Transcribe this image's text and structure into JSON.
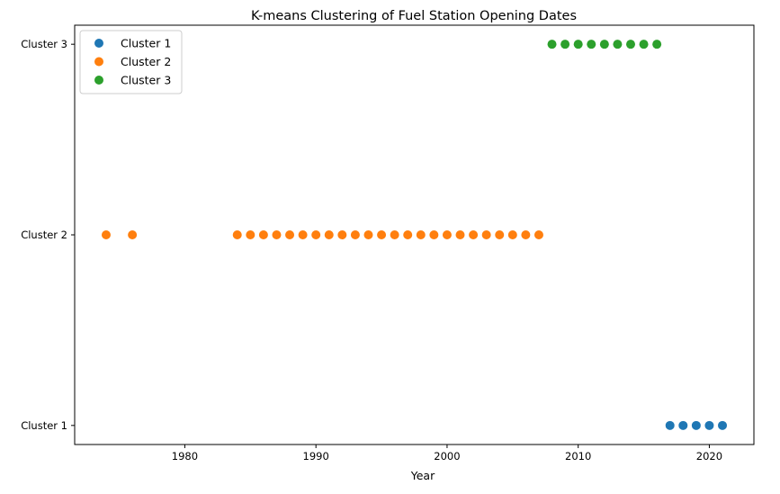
{
  "chart_data": {
    "type": "scatter",
    "title": "K-means Clustering of Fuel Station Opening Dates",
    "xlabel": "Year",
    "ylabel": "",
    "xlim": [
      1971.6,
      2023.4
    ],
    "ylim": [
      0.9,
      3.1
    ],
    "xticks": [
      1980,
      1990,
      2000,
      2010,
      2020
    ],
    "yticks": [
      {
        "value": 1,
        "label": "Cluster 1"
      },
      {
        "value": 2,
        "label": "Cluster 2"
      },
      {
        "value": 3,
        "label": "Cluster 3"
      }
    ],
    "grid": false,
    "legend_position": "top-left",
    "series": [
      {
        "name": "Cluster 1",
        "color": "#1f77b4",
        "y": 1,
        "x": [
          2017,
          2018,
          2019,
          2020,
          2021
        ]
      },
      {
        "name": "Cluster 2",
        "color": "#ff7f0e",
        "y": 2,
        "x": [
          1974,
          1976,
          1984,
          1985,
          1986,
          1987,
          1988,
          1989,
          1990,
          1991,
          1992,
          1993,
          1994,
          1995,
          1996,
          1997,
          1998,
          1999,
          2000,
          2001,
          2002,
          2003,
          2004,
          2005,
          2006,
          2007
        ]
      },
      {
        "name": "Cluster 3",
        "color": "#2ca02c",
        "y": 3,
        "x": [
          2008,
          2009,
          2010,
          2011,
          2012,
          2013,
          2014,
          2015,
          2016
        ]
      }
    ]
  }
}
